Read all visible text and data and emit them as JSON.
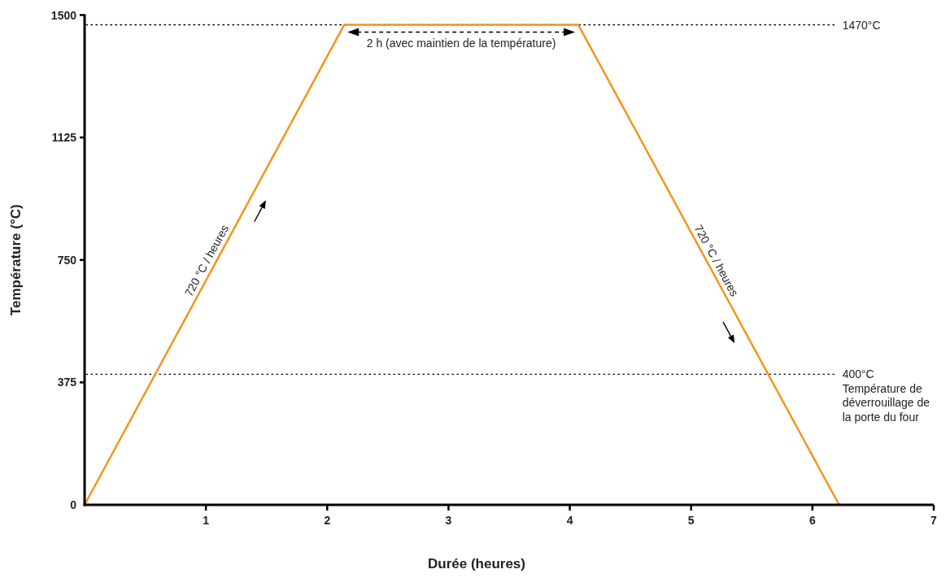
{
  "chart_data": {
    "type": "line",
    "xlabel": "Durée (heures)",
    "ylabel": "Température (°C)",
    "x": [
      0,
      2.14,
      4.07,
      6.22
    ],
    "series": [
      {
        "color": "#f7941d",
        "values": [
          0,
          1470,
          1470,
          0
        ]
      }
    ],
    "xlim": [
      0,
      7
    ],
    "ylim": [
      0,
      1500
    ],
    "xticks": [
      1,
      2,
      3,
      4,
      5,
      6,
      7
    ],
    "yticks": [
      0,
      375,
      750,
      1125,
      1500
    ],
    "grid": false,
    "marker": "none",
    "line_style": "solid",
    "ref_lines": [
      {
        "axis": "y",
        "value": 1470,
        "label": "1470°C",
        "line_style": "dotted"
      },
      {
        "axis": "y",
        "value": 400,
        "label": "400°C\nTempérature de déverrouillage de la porte du four",
        "line_style": "dotted"
      }
    ],
    "annotations": [
      "720 °C / heures",
      "2 h (avec maintien de la température)",
      "720 °C / heures"
    ]
  }
}
